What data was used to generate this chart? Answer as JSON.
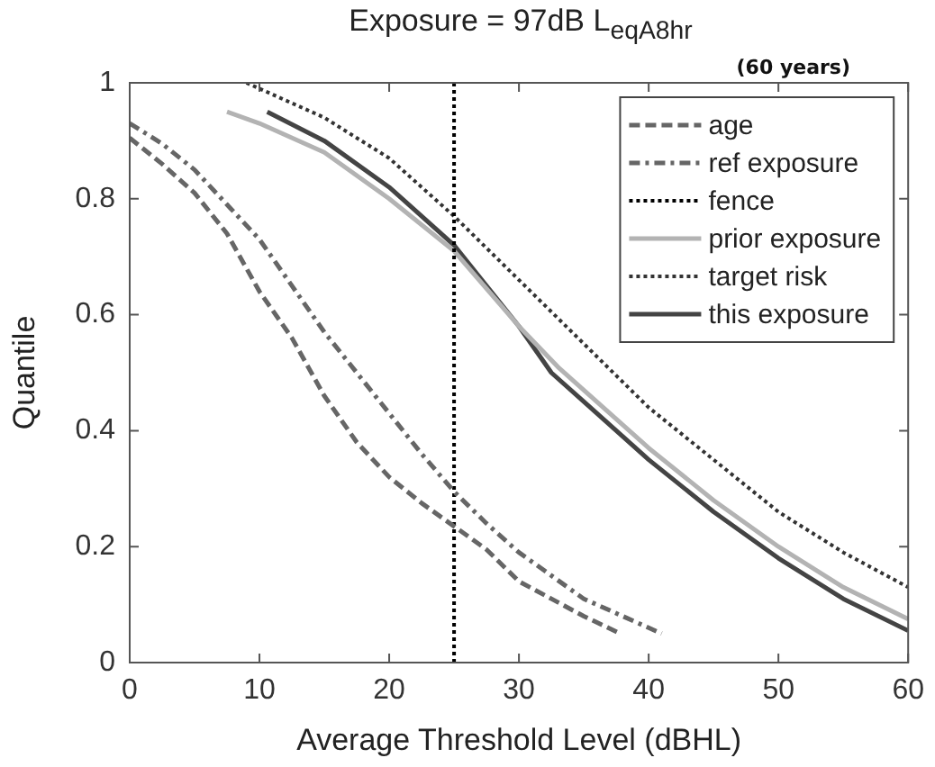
{
  "chart_data": {
    "type": "line",
    "title": "Exposure = 97dB L$_{eqA8hr}$",
    "xlabel": "Average Threshold Level (dBHL)",
    "ylabel": "Quantile",
    "annotations": [
      "(60 years)"
    ],
    "xlim": [
      0,
      60
    ],
    "xticks": [
      0,
      10,
      20,
      30,
      40,
      50,
      60
    ],
    "ylim": [
      0,
      1
    ],
    "yticks": [
      0,
      0.2,
      0.4,
      0.6,
      0.8,
      1
    ],
    "grid": false,
    "legend": "top right",
    "marker": "none",
    "series": [
      {
        "name": "age",
        "color": "#666666",
        "line_style": "dashed",
        "x": [
          0,
          2.5,
          5,
          7.5,
          10,
          12.5,
          15,
          17.5,
          20,
          22.5,
          25,
          27.5,
          30,
          32.5,
          35,
          37.8
        ],
        "values": [
          0.905,
          0.86,
          0.81,
          0.74,
          0.64,
          0.56,
          0.46,
          0.38,
          0.32,
          0.275,
          0.235,
          0.195,
          0.14,
          0.11,
          0.08,
          0.05
        ]
      },
      {
        "name": "ref exposure",
        "color": "#666666",
        "line_style": "dashdot",
        "x": [
          0,
          2.5,
          5,
          7.5,
          10,
          12.5,
          15,
          17.5,
          20,
          22.5,
          25,
          27.5,
          30,
          32.5,
          35,
          38,
          41
        ],
        "values": [
          0.93,
          0.895,
          0.85,
          0.79,
          0.73,
          0.65,
          0.57,
          0.5,
          0.43,
          0.36,
          0.295,
          0.24,
          0.19,
          0.15,
          0.11,
          0.08,
          0.05
        ]
      },
      {
        "name": "fence",
        "color": "#000000",
        "line_style": "dotted",
        "x": [
          25,
          25
        ],
        "values": [
          0,
          1
        ]
      },
      {
        "name": "prior exposure",
        "color": "#b3b3b3",
        "line_style": "solid",
        "x": [
          7.5,
          10,
          15,
          20,
          25,
          30,
          33,
          35,
          40,
          45,
          50,
          55,
          60
        ],
        "values": [
          0.95,
          0.93,
          0.88,
          0.8,
          0.71,
          0.58,
          0.51,
          0.47,
          0.37,
          0.28,
          0.2,
          0.13,
          0.075
        ]
      },
      {
        "name": "target risk",
        "color": "#333333",
        "line_style": "dotted",
        "x": [
          9,
          15,
          20,
          25,
          30,
          35,
          40,
          45,
          50,
          55,
          60
        ],
        "values": [
          1,
          0.94,
          0.87,
          0.77,
          0.66,
          0.55,
          0.44,
          0.35,
          0.26,
          0.19,
          0.13
        ]
      },
      {
        "name": "this exposure",
        "color": "#444444",
        "line_style": "solid",
        "x": [
          10.6,
          15,
          20,
          25,
          30,
          32.5,
          35,
          40,
          45,
          50,
          55,
          60
        ],
        "values": [
          0.95,
          0.9,
          0.82,
          0.72,
          0.58,
          0.5,
          0.45,
          0.35,
          0.26,
          0.18,
          0.11,
          0.055
        ]
      }
    ]
  }
}
